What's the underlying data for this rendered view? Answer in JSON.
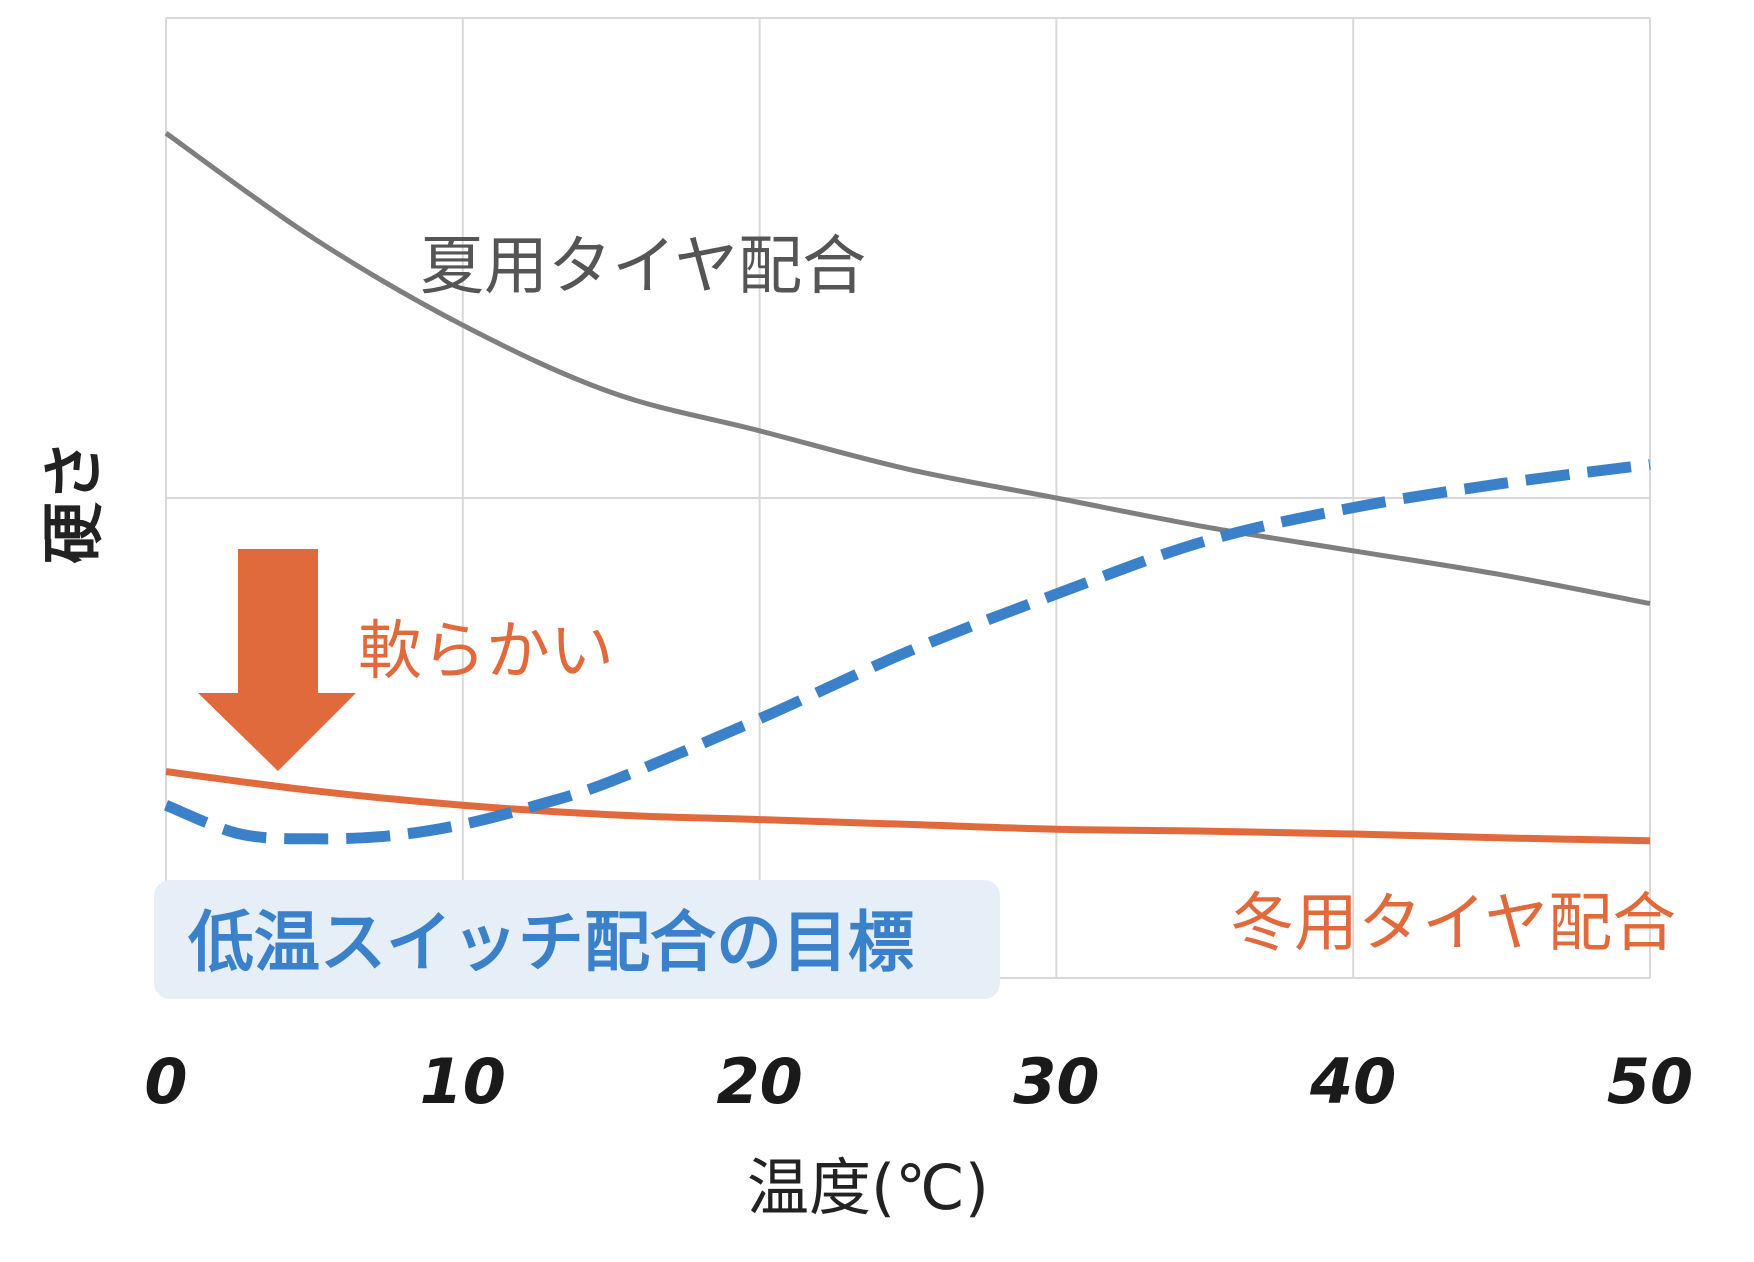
{
  "chart_data": {
    "type": "line",
    "xlabel": "温度(℃)",
    "ylabel": "硬さ",
    "xlim": [
      0,
      50
    ],
    "ylim": [
      0,
      100
    ],
    "x_ticks": [
      "0",
      "10",
      "20",
      "30",
      "40",
      "50"
    ],
    "y_tick_labels_shown": false,
    "grid": true,
    "series": [
      {
        "name": "夏用タイヤ配合",
        "color": "#7f7f7f",
        "style": "solid",
        "x": [
          0,
          5,
          10,
          15,
          20,
          25,
          30,
          35,
          40,
          45,
          50
        ],
        "y": [
          88,
          77,
          68,
          61,
          57,
          53,
          50,
          47,
          44.5,
          42,
          39
        ]
      },
      {
        "name": "冬用タイヤ配合",
        "color": "#e06a3b",
        "style": "solid",
        "x": [
          0,
          5,
          10,
          15,
          20,
          25,
          30,
          35,
          40,
          45,
          50
        ],
        "y": [
          21.5,
          19.5,
          18,
          17,
          16.5,
          16,
          15.5,
          15.3,
          15,
          14.6,
          14.3
        ]
      },
      {
        "name": "低温スイッチ配合の目標",
        "color": "#3a81c9",
        "style": "dashed",
        "x": [
          0,
          2.5,
          5,
          7.5,
          10,
          12.5,
          15,
          20,
          25,
          30,
          35,
          40,
          45,
          50
        ],
        "y": [
          18,
          15,
          14.5,
          14.8,
          16,
          18,
          20.5,
          27,
          34,
          40,
          45.5,
          49,
          51.5,
          53.5
        ]
      }
    ],
    "annotations": [
      {
        "text": "軟らかい",
        "color": "#e06a3b",
        "arrow": "down"
      }
    ]
  },
  "colors": {
    "grid": "#d9d9d9",
    "summer": "#7f7f7f",
    "winter": "#e06a3b",
    "target": "#3a81c9",
    "target_box": "#e6eef8"
  }
}
